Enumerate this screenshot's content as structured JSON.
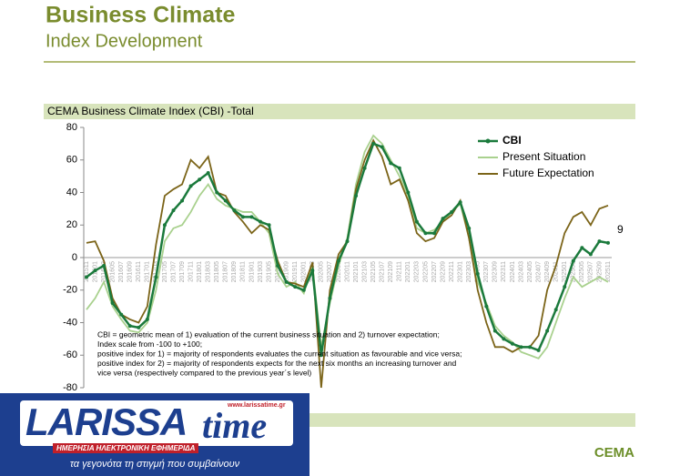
{
  "header": {
    "title": "Business Climate",
    "subtitle": "Index Development"
  },
  "chart_data": {
    "type": "line",
    "title": "CEMA Business Climate Index (CBI) -Total",
    "categories": [
      "201511",
      "201601",
      "201603",
      "201605",
      "201607",
      "201609",
      "201611",
      "201701",
      "201703",
      "201705",
      "201707",
      "201709",
      "201711",
      "201801",
      "201803",
      "201805",
      "201807",
      "201809",
      "201811",
      "201901",
      "201903",
      "201905",
      "201907",
      "201909",
      "201911",
      "202001",
      "202003",
      "202005",
      "202007",
      "202009",
      "202011",
      "202101",
      "202103",
      "202105",
      "202107",
      "202109",
      "202111",
      "202201",
      "202203",
      "202205",
      "202207",
      "202209",
      "202211",
      "202301",
      "202303",
      "202305",
      "202307",
      "202309",
      "202311",
      "202401",
      "202403",
      "202405",
      "202407",
      "202409",
      "202411",
      "202501",
      "202503",
      "202505",
      "202507",
      "202509",
      "202511"
    ],
    "series": [
      {
        "name": "CBI",
        "color": "#1b7a3c",
        "values": [
          -12,
          -8,
          -5,
          -28,
          -35,
          -42,
          -43,
          -38,
          -12,
          20,
          29,
          35,
          44,
          48,
          52,
          40,
          35,
          29,
          25,
          25,
          22,
          20,
          -5,
          -15,
          -18,
          -20,
          -8,
          -60,
          -25,
          -2,
          10,
          38,
          55,
          70,
          68,
          58,
          55,
          40,
          22,
          15,
          15,
          24,
          28,
          34,
          18,
          -10,
          -30,
          -45,
          -50,
          -53,
          -55,
          -55,
          -57,
          -45,
          -32,
          -18,
          -2,
          6,
          2,
          10,
          9
        ]
      },
      {
        "name": "Present Situation",
        "color": "#a9d18e",
        "values": [
          -32,
          -25,
          -15,
          -30,
          -38,
          -45,
          -46,
          -40,
          -20,
          10,
          18,
          20,
          28,
          38,
          45,
          36,
          32,
          30,
          28,
          28,
          22,
          15,
          -10,
          -18,
          -15,
          -22,
          -5,
          -55,
          -28,
          -5,
          12,
          45,
          65,
          75,
          70,
          60,
          50,
          38,
          18,
          15,
          17,
          22,
          28,
          33,
          12,
          -15,
          -28,
          -42,
          -48,
          -52,
          -58,
          -60,
          -62,
          -55,
          -40,
          -25,
          -12,
          -18,
          -15,
          -12,
          -15
        ]
      },
      {
        "name": "Future Expectation",
        "color": "#7b6418",
        "values": [
          9,
          10,
          -2,
          -25,
          -35,
          -38,
          -40,
          -30,
          8,
          38,
          42,
          45,
          60,
          55,
          62,
          40,
          38,
          28,
          22,
          15,
          20,
          17,
          -2,
          -15,
          -16,
          -18,
          -3,
          -80,
          -20,
          2,
          10,
          42,
          60,
          72,
          62,
          45,
          48,
          35,
          15,
          10,
          12,
          22,
          26,
          35,
          12,
          -20,
          -40,
          -55,
          -55,
          -58,
          -55,
          -55,
          -48,
          -20,
          -5,
          15,
          25,
          28,
          20,
          30,
          32
        ]
      }
    ],
    "ylim": [
      -80,
      80
    ],
    "yticks": [
      -80,
      -60,
      -40,
      -20,
      0,
      20,
      40,
      60,
      80
    ],
    "grid": false,
    "legend": "upper right",
    "note": [
      "CBI = geometric mean of 1) evaluation of the current business situation and 2) turnover expectation;",
      "Index scale from -100 to +100;",
      "positive index for 1) = majority of respondents evaluates the current situation as favourable and vice versa;",
      "positive index for 2) = majority of respondents expects for the next six months an increasing turnover and",
      "vice versa (respectively compared to the previous year´s level)"
    ]
  },
  "logo": "CEMA",
  "watermark": {
    "name1": "LARISSA",
    "name2": "time",
    "url": "www.larissatime.gr",
    "tagline": "ΗΜΕΡΗΣΙΑ ΗΛΕΚΤΡΟΝΙΚΗ ΕΦΗΜΕΡΙΔΑ",
    "slogan": "τα γεγονότα τη στιγμή που συμβαίνουν"
  }
}
